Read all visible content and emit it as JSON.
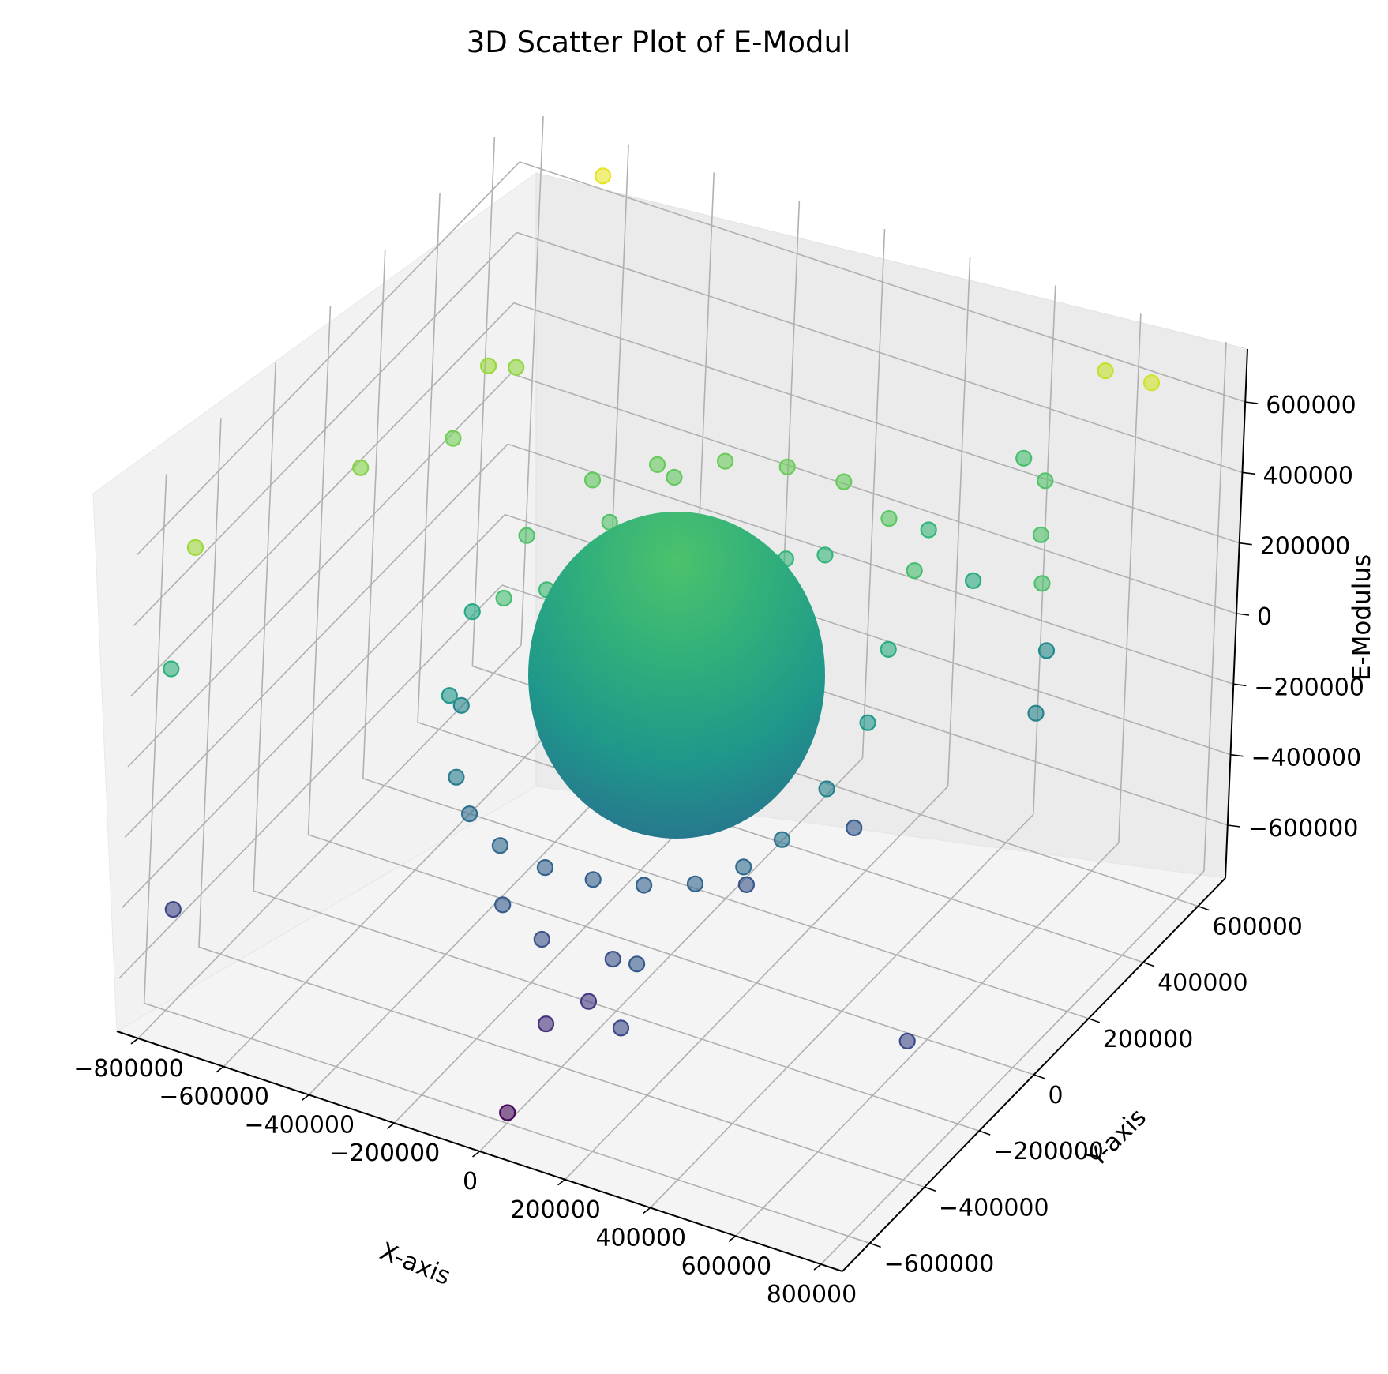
{
  "chart_data": {
    "type": "scatter",
    "title": "3D Scatter Plot of E-Modul",
    "xlabel": "X-axis",
    "ylabel": "Y-axis",
    "zlabel": "E-Modulus",
    "x_ticks": [
      "−800000",
      "−600000",
      "−400000",
      "−200000",
      "0",
      "200000",
      "400000",
      "600000",
      "800000"
    ],
    "y_ticks": [
      "−600000",
      "−400000",
      "−200000",
      "0",
      "200000",
      "400000",
      "600000"
    ],
    "z_ticks": [
      "−600000",
      "−400000",
      "−200000",
      "0",
      "200000",
      "400000",
      "600000"
    ],
    "xlim": [
      -850000,
      850000
    ],
    "ylim": [
      -700000,
      700000
    ],
    "zlim": [
      -750000,
      750000
    ],
    "colormap": "viridis",
    "color_by": "E-Modulus",
    "central_sphere": {
      "center": [
        0,
        0,
        0
      ],
      "radius": 300000
    },
    "points": [
      {
        "x": -620000,
        "y": 640000,
        "z": 700000
      },
      {
        "x": -600000,
        "y": 200000,
        "z": 520000
      },
      {
        "x": -560000,
        "y": 240000,
        "z": 500000
      },
      {
        "x": 680000,
        "y": 620000,
        "z": 650000
      },
      {
        "x": 560000,
        "y": 640000,
        "z": 620000
      },
      {
        "x": -800000,
        "y": -560000,
        "z": 530000
      },
      {
        "x": -680000,
        "y": -140000,
        "z": 470000
      },
      {
        "x": -590000,
        "y": 60000,
        "z": 430000
      },
      {
        "x": -160000,
        "y": 200000,
        "z": 380000
      },
      {
        "x": 480000,
        "y": 560000,
        "z": 340000
      },
      {
        "x": 560000,
        "y": 420000,
        "z": 330000
      },
      {
        "x": 640000,
        "y": 300000,
        "z": 320000
      },
      {
        "x": -820000,
        "y": -600000,
        "z": 210000
      },
      {
        "x": 380000,
        "y": 640000,
        "z": 300000
      },
      {
        "x": -10000,
        "y": -260000,
        "z": 70000
      },
      {
        "x": 270000,
        "y": -70000,
        "z": 10000
      },
      {
        "x": -780000,
        "y": -620000,
        "z": -440000
      },
      {
        "x": 760000,
        "y": -340000,
        "z": -420000
      },
      {
        "x": 620000,
        "y": 330000,
        "z": -80000
      },
      {
        "x": 560000,
        "y": 460000,
        "z": -30000
      },
      {
        "x": 20000,
        "y": -500000,
        "z": -540000
      },
      {
        "x": 80000,
        "y": -440000,
        "z": -500000
      },
      {
        "x": 230000,
        "y": -560000,
        "z": -420000
      },
      {
        "x": 0,
        "y": -600000,
        "z": -720000
      },
      {
        "x": 240000,
        "y": -120000,
        "z": -360000
      },
      {
        "x": 350000,
        "y": 100000,
        "z": -330000
      },
      {
        "x": -300000,
        "y": -200000,
        "z": 300000
      },
      {
        "x": -250000,
        "y": -120000,
        "z": 280000
      },
      {
        "x": -180000,
        "y": -60000,
        "z": 270000
      },
      {
        "x": -100000,
        "y": 20000,
        "z": 260000
      },
      {
        "x": -40000,
        "y": 80000,
        "z": 255000
      },
      {
        "x": 40000,
        "y": 150000,
        "z": 250000
      },
      {
        "x": 100000,
        "y": 210000,
        "z": 245000
      },
      {
        "x": 160000,
        "y": 260000,
        "z": 240000
      },
      {
        "x": -320000,
        "y": -320000,
        "z": -120000
      },
      {
        "x": -280000,
        "y": -330000,
        "z": -200000
      },
      {
        "x": -200000,
        "y": -340000,
        "z": -250000
      },
      {
        "x": -100000,
        "y": -330000,
        "z": -280000
      },
      {
        "x": 0,
        "y": -310000,
        "z": -290000
      },
      {
        "x": 100000,
        "y": -280000,
        "z": -290000
      },
      {
        "x": 200000,
        "y": -250000,
        "z": -270000
      },
      {
        "x": 280000,
        "y": -200000,
        "z": -230000
      },
      {
        "x": 330000,
        "y": -140000,
        "z": -180000
      },
      {
        "x": -400000,
        "y": -180000,
        "z": -60000
      },
      {
        "x": -380000,
        "y": -260000,
        "z": 40000
      },
      {
        "x": -420000,
        "y": -120000,
        "z": 150000
      },
      {
        "x": -300000,
        "y": 120000,
        "z": 380000
      },
      {
        "x": -200000,
        "y": 200000,
        "z": 400000
      },
      {
        "x": -80000,
        "y": 260000,
        "z": 410000
      },
      {
        "x": 40000,
        "y": 300000,
        "z": 410000
      },
      {
        "x": 160000,
        "y": 320000,
        "z": 400000
      },
      {
        "x": 280000,
        "y": 300000,
        "z": 360000
      },
      {
        "x": 380000,
        "y": 240000,
        "z": 300000
      },
      {
        "x": 400000,
        "y": 120000,
        "z": 180000
      },
      {
        "x": 420000,
        "y": 20000,
        "z": 60000
      },
      {
        "x": 380000,
        "y": -60000,
        "z": -80000
      },
      {
        "x": -140000,
        "y": -420000,
        "z": -330000
      },
      {
        "x": -40000,
        "y": -430000,
        "z": -380000
      },
      {
        "x": 120000,
        "y": -420000,
        "z": -380000
      },
      {
        "x": 200000,
        "y": -460000,
        "z": -330000
      },
      {
        "x": -350000,
        "y": -40000,
        "z": 330000
      },
      {
        "x": -220000,
        "y": 60000,
        "z": 340000
      },
      {
        "x": 300000,
        "y": 420000,
        "z": 240000
      },
      {
        "x": 420000,
        "y": 400000,
        "z": 160000
      }
    ]
  }
}
